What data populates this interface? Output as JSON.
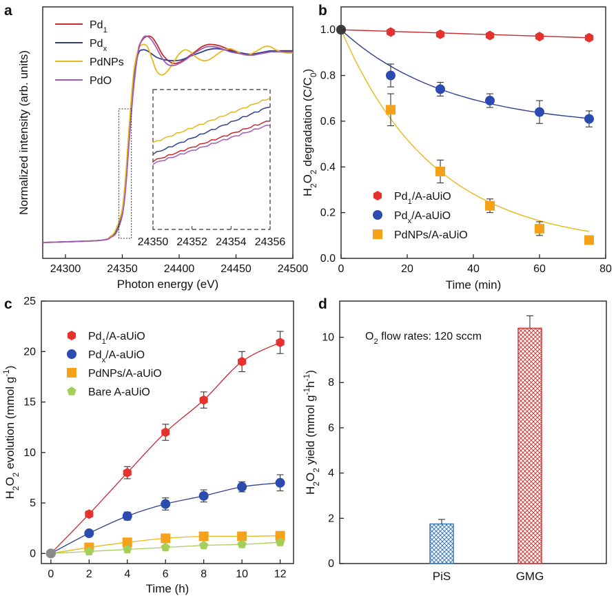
{
  "figure": {
    "panels": [
      {
        "letter": "a"
      },
      {
        "letter": "b"
      },
      {
        "letter": "c"
      },
      {
        "letter": "d"
      }
    ]
  },
  "colors": {
    "pd1": "#c8282e",
    "pdx": "#2e3f8f",
    "pdnps": "#e6b818",
    "pdo": "#a05cb8",
    "pd1_marker": "#e5322e",
    "pdx_marker": "#2c4bb0",
    "pdnps_marker": "#f5a11a",
    "bare_marker": "#a6cf5a",
    "pis_bar": "#3a78b8",
    "gmg_bar": "#d33a3a"
  },
  "chart_data": [
    {
      "id": "a",
      "type": "line",
      "xlabel": "Photon energy (eV)",
      "ylabel": "Normalized intensity (arb. units)",
      "xlim": [
        24280,
        24500
      ],
      "xticks": [
        "24300",
        "24350",
        "24400",
        "24450",
        "24500"
      ],
      "yticks_shown": false,
      "legend": [
        "Pd1",
        "Pdx",
        "PdNPs",
        "PdO"
      ],
      "legend_position": "top-left",
      "zoom_box": {
        "x_range": [
          24347,
          24358
        ]
      },
      "inset": {
        "xlim": [
          24350,
          24356
        ],
        "xticks": [
          "24350",
          "24352",
          "24354",
          "24356"
        ],
        "series": [
          {
            "name": "PdNPs",
            "y": [
              0.62,
              0.94
            ]
          },
          {
            "name": "Pdx",
            "y": [
              0.54,
              0.88
            ]
          },
          {
            "name": "Pd1",
            "y": [
              0.49,
              0.78
            ]
          },
          {
            "name": "PdO",
            "y": [
              0.47,
              0.75
            ]
          }
        ]
      },
      "series": [
        {
          "name": "Pd1",
          "x": [
            24280,
            24330,
            24340,
            24345,
            24350,
            24353,
            24356,
            24360,
            24364,
            24368,
            24372,
            24376,
            24380,
            24385,
            24390,
            24395,
            24400,
            24405,
            24410,
            24415,
            24420,
            24425,
            24430,
            24435,
            24440,
            24445,
            24450,
            24455,
            24460,
            24465,
            24470,
            24475,
            24480,
            24485,
            24490,
            24495,
            24500
          ],
          "y": [
            0.0,
            0.01,
            0.03,
            0.06,
            0.14,
            0.28,
            0.5,
            0.76,
            0.92,
            0.97,
            0.985,
            0.98,
            0.95,
            0.9,
            0.87,
            0.855,
            0.86,
            0.875,
            0.895,
            0.915,
            0.935,
            0.945,
            0.945,
            0.94,
            0.93,
            0.92,
            0.91,
            0.9,
            0.895,
            0.895,
            0.9,
            0.905,
            0.91,
            0.915,
            0.915,
            0.915,
            0.915
          ]
        },
        {
          "name": "Pdx",
          "x": [
            24280,
            24330,
            24340,
            24345,
            24350,
            24353,
            24356,
            24360,
            24364,
            24368,
            24372,
            24376,
            24380,
            24385,
            24390,
            24395,
            24400,
            24405,
            24410,
            24415,
            24420,
            24425,
            24430,
            24435,
            24440,
            24445,
            24450,
            24455,
            24460,
            24465,
            24470,
            24475,
            24480,
            24485,
            24490,
            24495,
            24500
          ],
          "y": [
            0.0,
            0.01,
            0.03,
            0.06,
            0.15,
            0.3,
            0.52,
            0.78,
            0.9,
            0.92,
            0.915,
            0.9,
            0.885,
            0.875,
            0.87,
            0.868,
            0.87,
            0.878,
            0.89,
            0.9,
            0.91,
            0.92,
            0.925,
            0.925,
            0.92,
            0.915,
            0.91,
            0.905,
            0.9,
            0.9,
            0.905,
            0.91,
            0.915,
            0.915,
            0.915,
            0.915,
            0.915
          ]
        },
        {
          "name": "PdNPs",
          "x": [
            24280,
            24330,
            24340,
            24345,
            24350,
            24353,
            24356,
            24360,
            24364,
            24368,
            24372,
            24376,
            24380,
            24385,
            24390,
            24395,
            24400,
            24405,
            24410,
            24415,
            24420,
            24425,
            24430,
            24435,
            24440,
            24445,
            24450,
            24455,
            24460,
            24465,
            24470,
            24475,
            24480,
            24485,
            24490,
            24495,
            24500
          ],
          "y": [
            0.0,
            0.01,
            0.03,
            0.07,
            0.16,
            0.32,
            0.55,
            0.81,
            0.92,
            0.945,
            0.935,
            0.88,
            0.82,
            0.8,
            0.82,
            0.86,
            0.9,
            0.92,
            0.91,
            0.885,
            0.87,
            0.87,
            0.885,
            0.905,
            0.92,
            0.925,
            0.915,
            0.9,
            0.895,
            0.905,
            0.92,
            0.935,
            0.935,
            0.92,
            0.91,
            0.905,
            0.905
          ]
        },
        {
          "name": "PdO",
          "x": [
            24280,
            24330,
            24340,
            24345,
            24350,
            24353,
            24356,
            24360,
            24364,
            24368,
            24372,
            24376,
            24380,
            24385,
            24390,
            24395,
            24400,
            24405,
            24410,
            24415,
            24420,
            24425,
            24430,
            24435,
            24440,
            24445,
            24450,
            24455,
            24460,
            24465,
            24470,
            24475,
            24480,
            24485,
            24490,
            24495,
            24500
          ],
          "y": [
            0.0,
            0.01,
            0.025,
            0.05,
            0.13,
            0.26,
            0.48,
            0.74,
            0.91,
            0.975,
            0.985,
            0.965,
            0.93,
            0.88,
            0.85,
            0.845,
            0.855,
            0.87,
            0.89,
            0.91,
            0.925,
            0.935,
            0.935,
            0.93,
            0.92,
            0.91,
            0.905,
            0.9,
            0.895,
            0.895,
            0.9,
            0.905,
            0.91,
            0.91,
            0.91,
            0.91,
            0.91
          ]
        }
      ]
    },
    {
      "id": "b",
      "type": "scatter",
      "xlabel": "Time (min)",
      "ylabel": "H2O2 degradation (C/C0)",
      "xlim": [
        0,
        80
      ],
      "ylim": [
        0,
        1.1
      ],
      "xticks": [
        0,
        20,
        40,
        60,
        80
      ],
      "yticks": [
        0.0,
        0.2,
        0.4,
        0.6,
        0.8,
        1.0
      ],
      "legend_position": "bottom-left",
      "series": [
        {
          "name": "Pd1/A-aUiO",
          "marker": "hexagon",
          "x": [
            0,
            15,
            30,
            45,
            60,
            75
          ],
          "y": [
            1.0,
            0.99,
            0.98,
            0.975,
            0.97,
            0.965
          ],
          "err": [
            0,
            0.01,
            0.01,
            0.01,
            0.01,
            0.01
          ],
          "fit": "linear"
        },
        {
          "name": "Pdx/A-aUiO",
          "marker": "circle",
          "x": [
            0,
            15,
            30,
            45,
            60,
            75
          ],
          "y": [
            1.0,
            0.8,
            0.74,
            0.69,
            0.64,
            0.61
          ],
          "err": [
            0,
            0.05,
            0.03,
            0.03,
            0.05,
            0.035
          ],
          "fit": "exp"
        },
        {
          "name": "PdNPs/A-aUiO",
          "marker": "square",
          "x": [
            0,
            15,
            30,
            45,
            60,
            75
          ],
          "y": [
            1.0,
            0.65,
            0.38,
            0.23,
            0.13,
            0.08
          ],
          "err": [
            0,
            0.07,
            0.05,
            0.03,
            0.03,
            0.01
          ],
          "fit": "exp"
        }
      ]
    },
    {
      "id": "c",
      "type": "scatter",
      "xlabel": "Time (h)",
      "ylabel": "H2O2 evolution (mmol g-1)",
      "xlim": [
        -0.5,
        12.7
      ],
      "ylim": [
        -1,
        25
      ],
      "xticks": [
        0,
        2,
        4,
        6,
        8,
        10,
        12
      ],
      "yticks": [
        0,
        5,
        10,
        15,
        20,
        25
      ],
      "legend_position": "top-left",
      "series": [
        {
          "name": "Pd1/A-aUiO",
          "marker": "hexagon",
          "x": [
            0,
            2,
            4,
            6,
            8,
            10,
            12
          ],
          "y": [
            0,
            3.9,
            8.0,
            12.0,
            15.2,
            19.0,
            20.9
          ],
          "err": [
            0,
            0.3,
            0.6,
            0.8,
            0.8,
            1.0,
            1.1
          ]
        },
        {
          "name": "Pdx/A-aUiO",
          "marker": "circle",
          "x": [
            0,
            2,
            4,
            6,
            8,
            10,
            12
          ],
          "y": [
            0,
            2.0,
            3.7,
            4.9,
            5.7,
            6.6,
            7.0
          ],
          "err": [
            0,
            0.2,
            0.4,
            0.6,
            0.6,
            0.5,
            0.8
          ]
        },
        {
          "name": "PdNPs/A-aUiO",
          "marker": "square",
          "x": [
            0,
            2,
            4,
            6,
            8,
            10,
            12
          ],
          "y": [
            0,
            0.6,
            1.1,
            1.5,
            1.7,
            1.7,
            1.75
          ],
          "err": [
            0,
            0.1,
            0.1,
            0.1,
            0.1,
            0.1,
            0.1
          ]
        },
        {
          "name": "Bare A-aUiO",
          "marker": "pentagon",
          "x": [
            0,
            2,
            4,
            6,
            8,
            10,
            12
          ],
          "y": [
            0,
            0.2,
            0.4,
            0.6,
            0.8,
            0.9,
            1.1
          ],
          "err": [
            0,
            0.05,
            0.05,
            0.05,
            0.05,
            0.05,
            0.05
          ]
        }
      ]
    },
    {
      "id": "d",
      "type": "bar",
      "ylabel": "H2O2 yield (mmol g-1h-1)",
      "annotation": "O2 flow rates: 120 sccm",
      "categories": [
        "PiS",
        "GMG"
      ],
      "values": [
        1.75,
        10.4
      ],
      "err": [
        0.2,
        0.55
      ],
      "ylim": [
        0,
        11.6
      ],
      "yticks": [
        0,
        2,
        4,
        6,
        8,
        10
      ]
    }
  ]
}
